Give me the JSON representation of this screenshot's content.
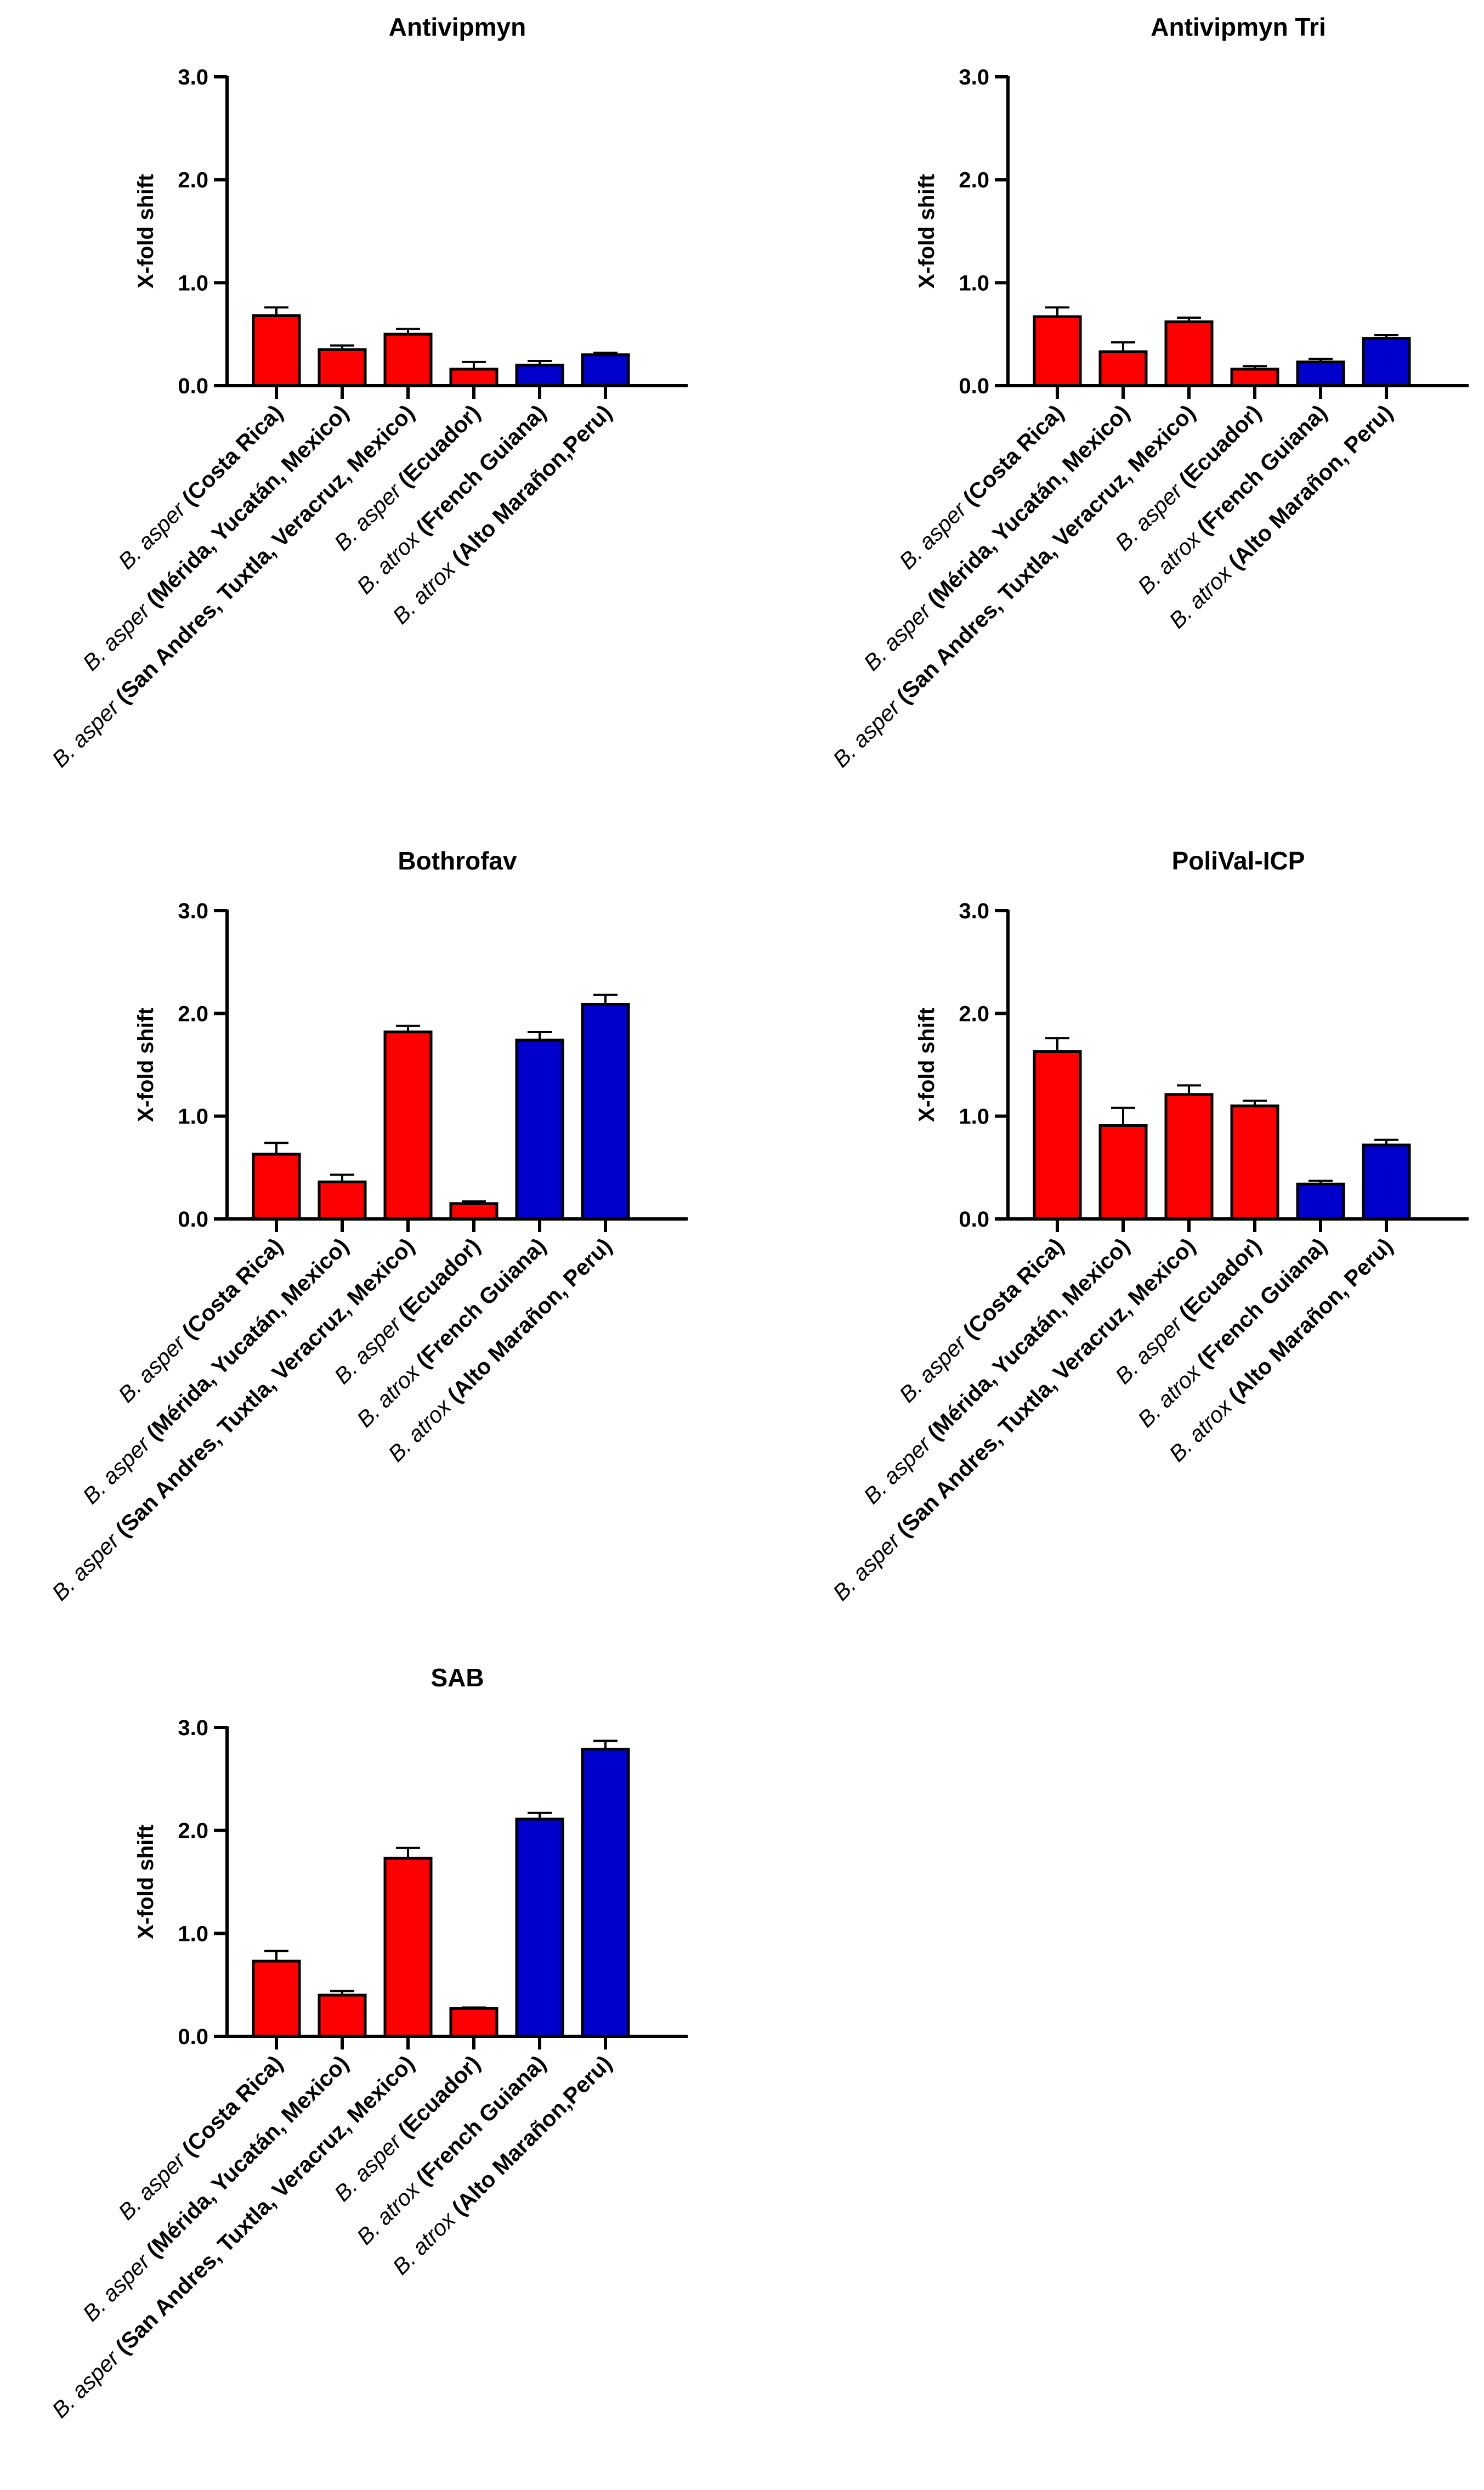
{
  "figure": {
    "colors": {
      "asper": "#ff0000",
      "atrox": "#0000cc",
      "axis": "#000000"
    }
  },
  "chart_data": [
    {
      "type": "bar",
      "title": "Antivipmyn",
      "xlabel": "",
      "ylabel": "X-fold shift",
      "ylim": [
        0,
        3
      ],
      "yticks": [
        "0.0",
        "1.0",
        "2.0",
        "3.0"
      ],
      "categories": [
        {
          "species": "B. asper",
          "locality": "(Costa Rica)"
        },
        {
          "species": "B. asper",
          "locality": "(Mérida, Yucatán, Mexico)"
        },
        {
          "species": "B. asper",
          "locality": "(San Andres, Tuxtla, Veracruz, Mexico)"
        },
        {
          "species": "B. asper",
          "locality": "(Ecuador)"
        },
        {
          "species": "B. atrox",
          "locality": "(French Guiana)"
        },
        {
          "species": "B. atrox",
          "locality": "(Alto Marañon,Peru)"
        }
      ],
      "values": [
        0.68,
        0.35,
        0.5,
        0.16,
        0.2,
        0.3
      ],
      "errors": [
        0.08,
        0.04,
        0.05,
        0.07,
        0.04,
        0.02
      ],
      "bar_colors": [
        "#ff0000",
        "#ff0000",
        "#ff0000",
        "#ff0000",
        "#0000cc",
        "#0000cc"
      ]
    },
    {
      "type": "bar",
      "title": "Antivipmyn Tri",
      "xlabel": "",
      "ylabel": "X-fold shift",
      "ylim": [
        0,
        3
      ],
      "yticks": [
        "0.0",
        "1.0",
        "2.0",
        "3.0"
      ],
      "categories": [
        {
          "species": "B. asper",
          "locality": "(Costa Rica)"
        },
        {
          "species": "B. asper",
          "locality": "(Mérida, Yucatán, Mexico)"
        },
        {
          "species": "B. asper",
          "locality": "(San Andres, Tuxtla, Veracruz, Mexico)"
        },
        {
          "species": "B. asper",
          "locality": "(Ecuador)"
        },
        {
          "species": "B. atrox",
          "locality": "(French Guiana)"
        },
        {
          "species": "B. atrox",
          "locality": "(Alto Marañon, Peru)"
        }
      ],
      "values": [
        0.67,
        0.33,
        0.62,
        0.16,
        0.23,
        0.46
      ],
      "errors": [
        0.09,
        0.09,
        0.04,
        0.03,
        0.03,
        0.03
      ],
      "bar_colors": [
        "#ff0000",
        "#ff0000",
        "#ff0000",
        "#ff0000",
        "#0000cc",
        "#0000cc"
      ]
    },
    {
      "type": "bar",
      "title": "Bothrofav",
      "xlabel": "",
      "ylabel": "X-fold shift",
      "ylim": [
        0,
        3
      ],
      "yticks": [
        "0.0",
        "1.0",
        "2.0",
        "3.0"
      ],
      "categories": [
        {
          "species": "B. asper",
          "locality": "(Costa Rica)"
        },
        {
          "species": "B. asper",
          "locality": "(Mérida, Yucatán, Mexico)"
        },
        {
          "species": "B. asper",
          "locality": "(San Andres, Tuxtla, Veracruz, Mexico)"
        },
        {
          "species": "B. asper",
          "locality": "(Ecuador)"
        },
        {
          "species": "B. atrox",
          "locality": "(French Guiana)"
        },
        {
          "species": "B. atrox",
          "locality": "(Alto Marañon, Peru)"
        }
      ],
      "values": [
        0.63,
        0.36,
        1.82,
        0.15,
        1.74,
        2.09
      ],
      "errors": [
        0.11,
        0.07,
        0.06,
        0.02,
        0.08,
        0.09
      ],
      "bar_colors": [
        "#ff0000",
        "#ff0000",
        "#ff0000",
        "#ff0000",
        "#0000cc",
        "#0000cc"
      ]
    },
    {
      "type": "bar",
      "title": "PoliVal-ICP",
      "xlabel": "",
      "ylabel": "X-fold shift",
      "ylim": [
        0,
        3
      ],
      "yticks": [
        "0.0",
        "1.0",
        "2.0",
        "3.0"
      ],
      "categories": [
        {
          "species": "B. asper",
          "locality": "(Costa Rica)"
        },
        {
          "species": "B. asper",
          "locality": "(Mérida, Yucatán, Mexico)"
        },
        {
          "species": "B. asper",
          "locality": "(San Andres, Tuxtla, Veracruz, Mexico)"
        },
        {
          "species": "B. asper",
          "locality": "(Ecuador)"
        },
        {
          "species": "B. atrox",
          "locality": "(French Guiana)"
        },
        {
          "species": "B. atrox",
          "locality": "(Alto Marañon, Peru)"
        }
      ],
      "values": [
        1.63,
        0.91,
        1.21,
        1.1,
        0.34,
        0.72
      ],
      "errors": [
        0.13,
        0.17,
        0.09,
        0.05,
        0.03,
        0.05
      ],
      "bar_colors": [
        "#ff0000",
        "#ff0000",
        "#ff0000",
        "#ff0000",
        "#0000cc",
        "#0000cc"
      ]
    },
    {
      "type": "bar",
      "title": "SAB",
      "xlabel": "",
      "ylabel": "X-fold shift",
      "ylim": [
        0,
        3
      ],
      "yticks": [
        "0.0",
        "1.0",
        "2.0",
        "3.0"
      ],
      "categories": [
        {
          "species": "B. asper",
          "locality": "(Costa Rica)"
        },
        {
          "species": "B. asper",
          "locality": "(Mérida, Yucatán, Mexico)"
        },
        {
          "species": "B. asper",
          "locality": "(San Andres, Tuxtla, Veracruz, Mexico)"
        },
        {
          "species": "B. asper",
          "locality": "(Ecuador)"
        },
        {
          "species": "B. atrox",
          "locality": "(French Guiana)"
        },
        {
          "species": "B. atrox",
          "locality": "(Alto Marañon,Peru)"
        }
      ],
      "values": [
        0.73,
        0.4,
        1.73,
        0.27,
        2.11,
        2.79
      ],
      "errors": [
        0.1,
        0.04,
        0.1,
        0.01,
        0.06,
        0.08
      ],
      "bar_colors": [
        "#ff0000",
        "#ff0000",
        "#ff0000",
        "#ff0000",
        "#0000cc",
        "#0000cc"
      ]
    }
  ]
}
